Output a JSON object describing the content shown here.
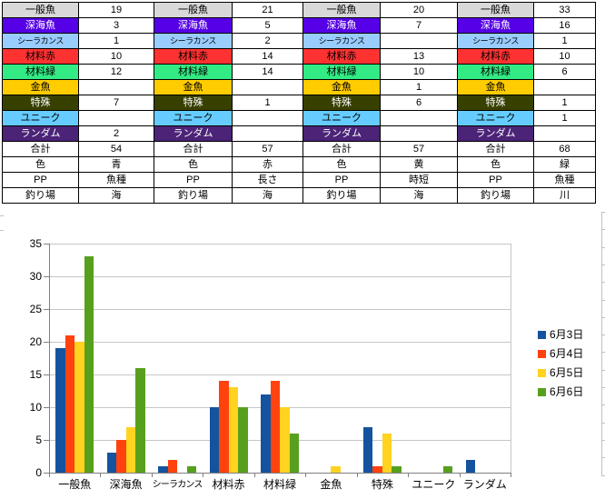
{
  "table": {
    "num_day_columns": 4,
    "rows": [
      {
        "label": "一般魚",
        "bg": "#D9D9D9",
        "fg": "#000000",
        "values": [
          "19",
          "21",
          "20",
          "33"
        ]
      },
      {
        "label": "深海魚",
        "bg": "#5500E6",
        "fg": "#FFFFFF",
        "values": [
          "3",
          "5",
          "7",
          "16"
        ]
      },
      {
        "label": "シーラカンス",
        "bg": "#99CCFF",
        "fg": "#000000",
        "values": [
          "1",
          "2",
          "",
          "1"
        ]
      },
      {
        "label": "材料赤",
        "bg": "#FF3232",
        "fg": "#000000",
        "values": [
          "10",
          "14",
          "13",
          "10"
        ]
      },
      {
        "label": "材料緑",
        "bg": "#33EB84",
        "fg": "#000000",
        "values": [
          "12",
          "14",
          "10",
          "6"
        ]
      },
      {
        "label": "金魚",
        "bg": "#FFCC00",
        "fg": "#000000",
        "values": [
          "",
          "",
          "1",
          ""
        ]
      },
      {
        "label": "特殊",
        "bg": "#384000",
        "fg": "#FFFFFF",
        "values": [
          "7",
          "1",
          "6",
          "1"
        ]
      },
      {
        "label": "ユニーク",
        "bg": "#66CCFF",
        "fg": "#000000",
        "values": [
          "",
          "",
          "",
          "1"
        ]
      },
      {
        "label": "ランダム",
        "bg": "#4B2377",
        "fg": "#FFFFFF",
        "values": [
          "2",
          "",
          "",
          ""
        ]
      },
      {
        "label": "合計",
        "bg": "#FFFFFF",
        "fg": "#000000",
        "values": [
          "54",
          "57",
          "57",
          "68"
        ]
      },
      {
        "label": "色",
        "bg": "#FFFFFF",
        "fg": "#000000",
        "values": [
          "青",
          "赤",
          "黄",
          "緑"
        ]
      },
      {
        "label": "PP",
        "bg": "#FFFFFF",
        "fg": "#000000",
        "values": [
          "魚種",
          "長さ",
          "時短",
          "魚種"
        ]
      },
      {
        "label": "釣り場",
        "bg": "#FFFFFF",
        "fg": "#000000",
        "values": [
          "海",
          "海",
          "海",
          "川"
        ]
      }
    ]
  },
  "chart_data": {
    "type": "bar",
    "categories": [
      "一般魚",
      "深海魚",
      "シーラカンス",
      "材料赤",
      "材料緑",
      "金魚",
      "特殊",
      "ユニーク",
      "ランダム"
    ],
    "series": [
      {
        "name": "6月3日",
        "color": "#15539E",
        "values": [
          19,
          3,
          1,
          10,
          12,
          0,
          7,
          0,
          2
        ]
      },
      {
        "name": "6月4日",
        "color": "#FF420E",
        "values": [
          21,
          5,
          2,
          14,
          14,
          0,
          1,
          0,
          0
        ]
      },
      {
        "name": "6月5日",
        "color": "#FFD320",
        "values": [
          20,
          7,
          0,
          13,
          10,
          1,
          6,
          0,
          0
        ]
      },
      {
        "name": "6月6日",
        "color": "#57A01E",
        "values": [
          33,
          16,
          1,
          10,
          6,
          0,
          1,
          1,
          0
        ]
      }
    ],
    "title": "",
    "xlabel": "",
    "ylabel": "",
    "ylim": [
      0,
      35
    ],
    "ytick_step": 5,
    "yticks": [
      "0",
      "5",
      "10",
      "15",
      "20",
      "25",
      "30",
      "35"
    ],
    "grid": true,
    "legend_position": "right",
    "gridline_color": "#C6C6C6",
    "axis_color": "#808080",
    "text_color": "#000000"
  }
}
